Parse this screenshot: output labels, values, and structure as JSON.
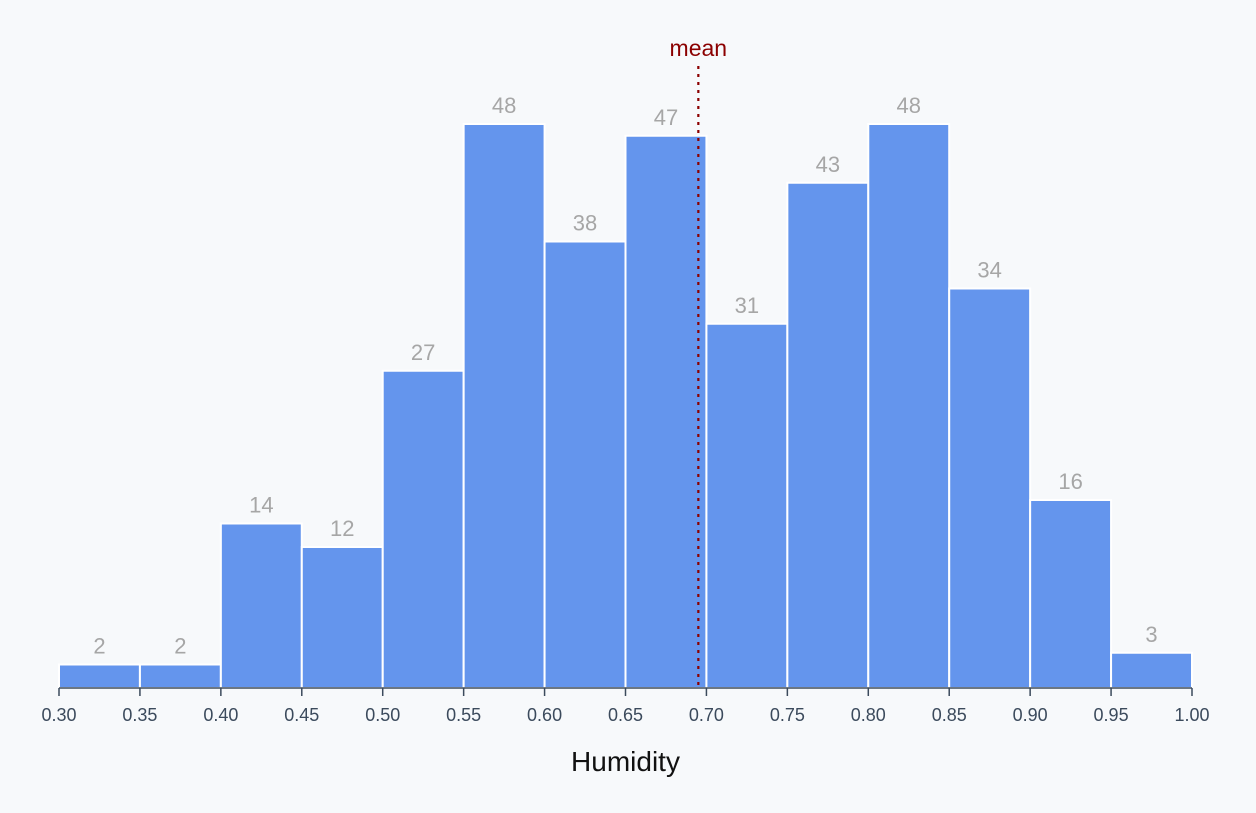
{
  "chart_data": {
    "type": "bar",
    "title": "",
    "xlabel": "Humidity",
    "ylabel": "",
    "bins": [
      [
        0.3,
        0.35
      ],
      [
        0.35,
        0.4
      ],
      [
        0.4,
        0.45
      ],
      [
        0.45,
        0.5
      ],
      [
        0.5,
        0.55
      ],
      [
        0.55,
        0.6
      ],
      [
        0.6,
        0.65
      ],
      [
        0.65,
        0.7
      ],
      [
        0.7,
        0.75
      ],
      [
        0.75,
        0.8
      ],
      [
        0.8,
        0.85
      ],
      [
        0.85,
        0.9
      ],
      [
        0.9,
        0.95
      ],
      [
        0.95,
        1.0
      ]
    ],
    "values": [
      2,
      2,
      14,
      12,
      27,
      48,
      38,
      47,
      31,
      43,
      48,
      34,
      16,
      3
    ],
    "xlim": [
      0.3,
      1.0
    ],
    "ylim": [
      0,
      48
    ],
    "xticks": [
      "0.30",
      "0.35",
      "0.40",
      "0.45",
      "0.50",
      "0.55",
      "0.60",
      "0.65",
      "0.70",
      "0.75",
      "0.80",
      "0.85",
      "0.90",
      "0.95",
      "1.00"
    ],
    "mean": {
      "label": "mean",
      "value": 0.695
    },
    "grid": false,
    "legend": "none",
    "colors": {
      "bar": "#6495ed",
      "bar_edge": "#ffffff",
      "bar_label": "#a6a6a6",
      "axis": "#3b4a5c",
      "mean_line": "#8b0000",
      "xlabel": "#111111"
    }
  }
}
